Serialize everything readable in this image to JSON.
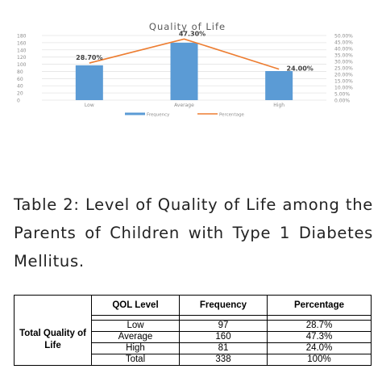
{
  "chart_data": {
    "type": "bar",
    "title": "Quality of Life",
    "categories": [
      "Low",
      "Average",
      "High"
    ],
    "series": [
      {
        "name": "Frequency",
        "type": "bar",
        "axis": "left",
        "values": [
          97,
          160,
          81
        ],
        "color": "#5b9bd5"
      },
      {
        "name": "Percentage",
        "type": "line",
        "axis": "right",
        "values": [
          28.7,
          47.3,
          24.0
        ],
        "color": "#ed7d31"
      }
    ],
    "data_labels": [
      "28.70%",
      "47.30%",
      "24.00%"
    ],
    "y_left_ticks": [
      "180",
      "160",
      "140",
      "120",
      "100",
      "80",
      "60",
      "40",
      "20",
      "0"
    ],
    "y_left_range": [
      0,
      180
    ],
    "y_right_ticks": [
      "50.00%",
      "45.00%",
      "40.00%",
      "35.00%",
      "30.00%",
      "25.00%",
      "20.00%",
      "15.00%",
      "10.00%",
      "5.00%",
      "0.00%"
    ],
    "y_right_range": [
      0,
      50
    ],
    "grid": true,
    "legend_position": "bottom"
  },
  "caption": "Table 2: Level of Quality of Life among the Parents of Children with Type 1 Diabetes Mellitus.",
  "table": {
    "row_group_label": "Total Quality of Life",
    "headers": [
      "QOL Level",
      "Frequency",
      "Percentage"
    ],
    "rows": [
      {
        "level": "Low",
        "frequency": "97",
        "percentage": "28.7%"
      },
      {
        "level": "Average",
        "frequency": "160",
        "percentage": "47.3%"
      },
      {
        "level": "High",
        "frequency": "81",
        "percentage": "24.0%"
      },
      {
        "level": "Total",
        "frequency": "338",
        "percentage": "100%"
      }
    ]
  }
}
